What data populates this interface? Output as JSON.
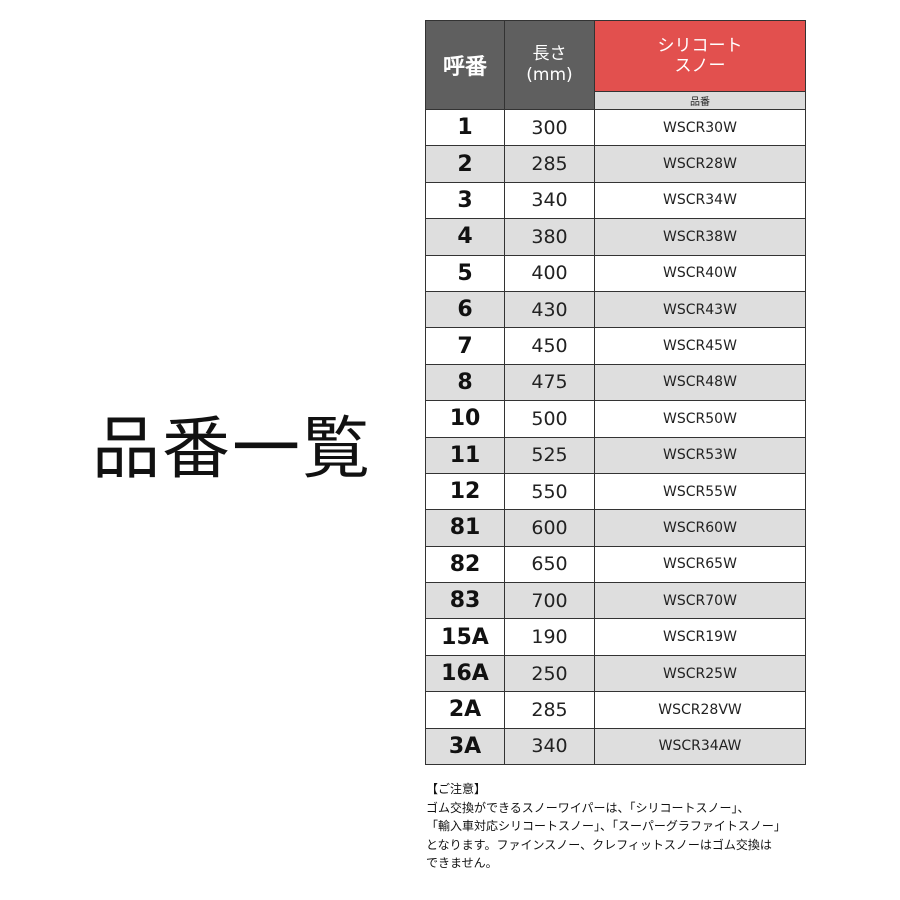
{
  "title": "品番一覧",
  "table": {
    "headers": {
      "number": "呼番",
      "length_line1": "長さ",
      "length_line2": "(mm)",
      "product_line1": "シリコート",
      "product_line2": "スノー",
      "product_sub": "品番"
    },
    "colors": {
      "header_gray": "#5f5f5f",
      "header_red": "#e2504e",
      "row_alt": "#dedede"
    },
    "rows": [
      {
        "no": "1",
        "length": "300",
        "code": "WSCR30W"
      },
      {
        "no": "2",
        "length": "285",
        "code": "WSCR28W"
      },
      {
        "no": "3",
        "length": "340",
        "code": "WSCR34W"
      },
      {
        "no": "4",
        "length": "380",
        "code": "WSCR38W"
      },
      {
        "no": "5",
        "length": "400",
        "code": "WSCR40W"
      },
      {
        "no": "6",
        "length": "430",
        "code": "WSCR43W"
      },
      {
        "no": "7",
        "length": "450",
        "code": "WSCR45W"
      },
      {
        "no": "8",
        "length": "475",
        "code": "WSCR48W"
      },
      {
        "no": "10",
        "length": "500",
        "code": "WSCR50W"
      },
      {
        "no": "11",
        "length": "525",
        "code": "WSCR53W"
      },
      {
        "no": "12",
        "length": "550",
        "code": "WSCR55W"
      },
      {
        "no": "81",
        "length": "600",
        "code": "WSCR60W"
      },
      {
        "no": "82",
        "length": "650",
        "code": "WSCR65W"
      },
      {
        "no": "83",
        "length": "700",
        "code": "WSCR70W"
      },
      {
        "no": "15A",
        "length": "190",
        "code": "WSCR19W"
      },
      {
        "no": "16A",
        "length": "250",
        "code": "WSCR25W"
      },
      {
        "no": "2A",
        "length": "285",
        "code": "WSCR28VW"
      },
      {
        "no": "3A",
        "length": "340",
        "code": "WSCR34AW"
      }
    ]
  },
  "notes": {
    "heading": "【ご注意】",
    "lines": [
      "ゴム交換ができるスノーワイパーは、「シリコートスノー」、",
      "「輸入車対応シリコートスノー」、「スーパーグラファイトスノー」",
      "となります。ファインスノー、クレフィットスノーはゴム交換は",
      "できません。"
    ]
  }
}
